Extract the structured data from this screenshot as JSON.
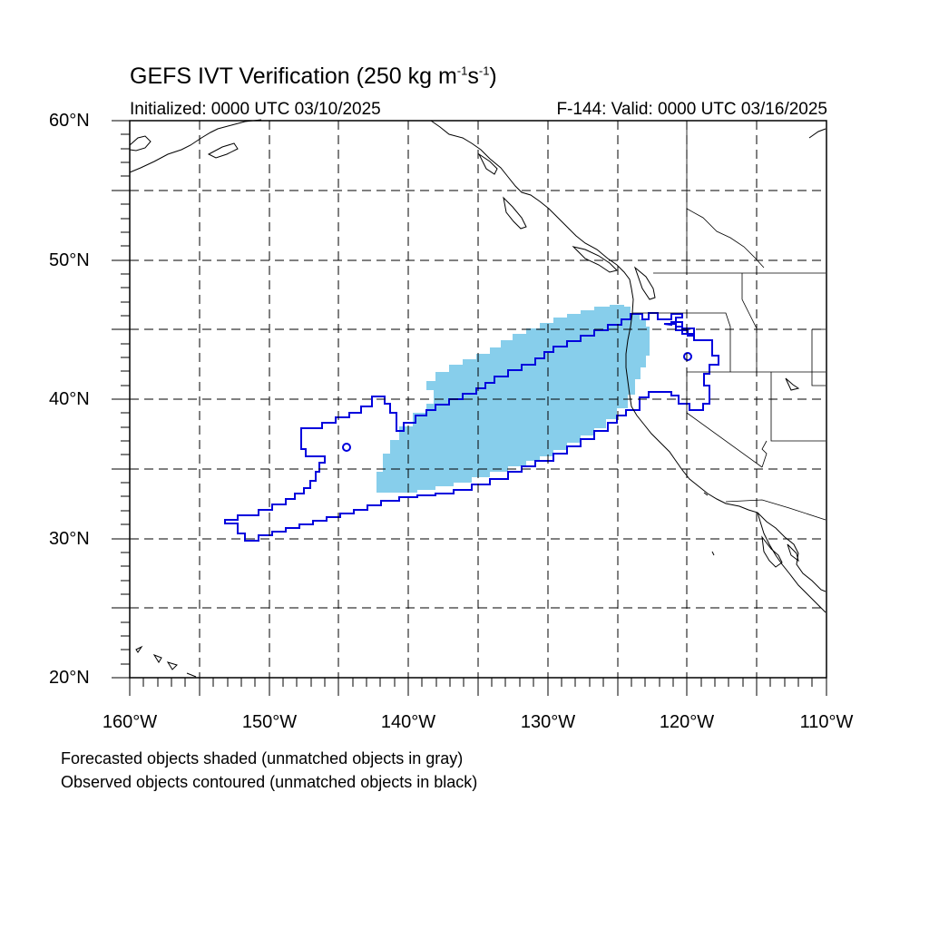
{
  "title": {
    "main_prefix": "GEFS IVT Verification (250 kg m",
    "sup1": "-1",
    "mid": "s",
    "sup2": "-1",
    "suffix": ")"
  },
  "initialized": "Initialized: 0000 UTC 03/10/2025",
  "valid": "F-144: Valid: 0000 UTC 03/16/2025",
  "lat_labels": [
    "60°N",
    "50°N",
    "40°N",
    "30°N",
    "20°N"
  ],
  "lon_labels": [
    "160°W",
    "150°W",
    "140°W",
    "130°W",
    "120°W",
    "110°W"
  ],
  "notes": [
    "Forecasted objects shaded (unmatched objects in gray)",
    "Observed objects contoured (unmatched objects in black)"
  ],
  "colors": {
    "forecast_fill": "#87ceeb",
    "observed_contour": "#0000dd",
    "coastline": "#000000",
    "grid": "#000000"
  },
  "map": {
    "lon_range": [
      -160,
      -110
    ],
    "lat_range": [
      20,
      60
    ],
    "grid_lon_step": 5,
    "grid_lat_step": 5,
    "grid_style": "dashed"
  }
}
